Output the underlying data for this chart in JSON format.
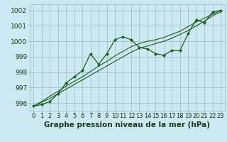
{
  "title": "Graphe pression niveau de la mer (hPa)",
  "x_labels": [
    "0",
    "1",
    "2",
    "3",
    "4",
    "5",
    "6",
    "7",
    "8",
    "9",
    "10",
    "11",
    "12",
    "13",
    "14",
    "15",
    "16",
    "17",
    "18",
    "19",
    "20",
    "21",
    "22",
    "23"
  ],
  "x_values": [
    0,
    1,
    2,
    3,
    4,
    5,
    6,
    7,
    8,
    9,
    10,
    11,
    12,
    13,
    14,
    15,
    16,
    17,
    18,
    19,
    20,
    21,
    22,
    23
  ],
  "y_main": [
    995.8,
    995.9,
    996.1,
    996.6,
    997.3,
    997.7,
    998.1,
    999.2,
    998.5,
    999.2,
    1000.1,
    1000.3,
    1000.1,
    999.6,
    999.5,
    999.2,
    999.1,
    999.4,
    999.4,
    1000.5,
    1001.4,
    1001.2,
    1001.9,
    1002.0
  ],
  "y_trend1": [
    995.8,
    996.05,
    996.3,
    996.6,
    996.9,
    997.2,
    997.5,
    997.8,
    998.1,
    998.4,
    998.7,
    999.0,
    999.3,
    999.55,
    999.7,
    999.85,
    1000.0,
    1000.2,
    1000.45,
    1000.7,
    1001.0,
    1001.3,
    1001.65,
    1001.9
  ],
  "y_trend2": [
    995.8,
    996.1,
    996.45,
    996.75,
    997.1,
    997.4,
    997.7,
    998.05,
    998.4,
    998.7,
    999.05,
    999.35,
    999.65,
    999.85,
    1000.0,
    1000.1,
    1000.25,
    1000.45,
    1000.65,
    1000.95,
    1001.25,
    1001.5,
    1001.75,
    1002.0
  ],
  "ylim": [
    995.5,
    1002.4
  ],
  "yticks": [
    996,
    997,
    998,
    999,
    1000,
    1001,
    1002
  ],
  "bg_color": "#cce8f0",
  "grid_color": "#99bbcc",
  "line_color": "#1a5c1a",
  "title_color": "#1a3a1a",
  "title_fontsize": 7.5,
  "tick_fontsize": 6.5
}
